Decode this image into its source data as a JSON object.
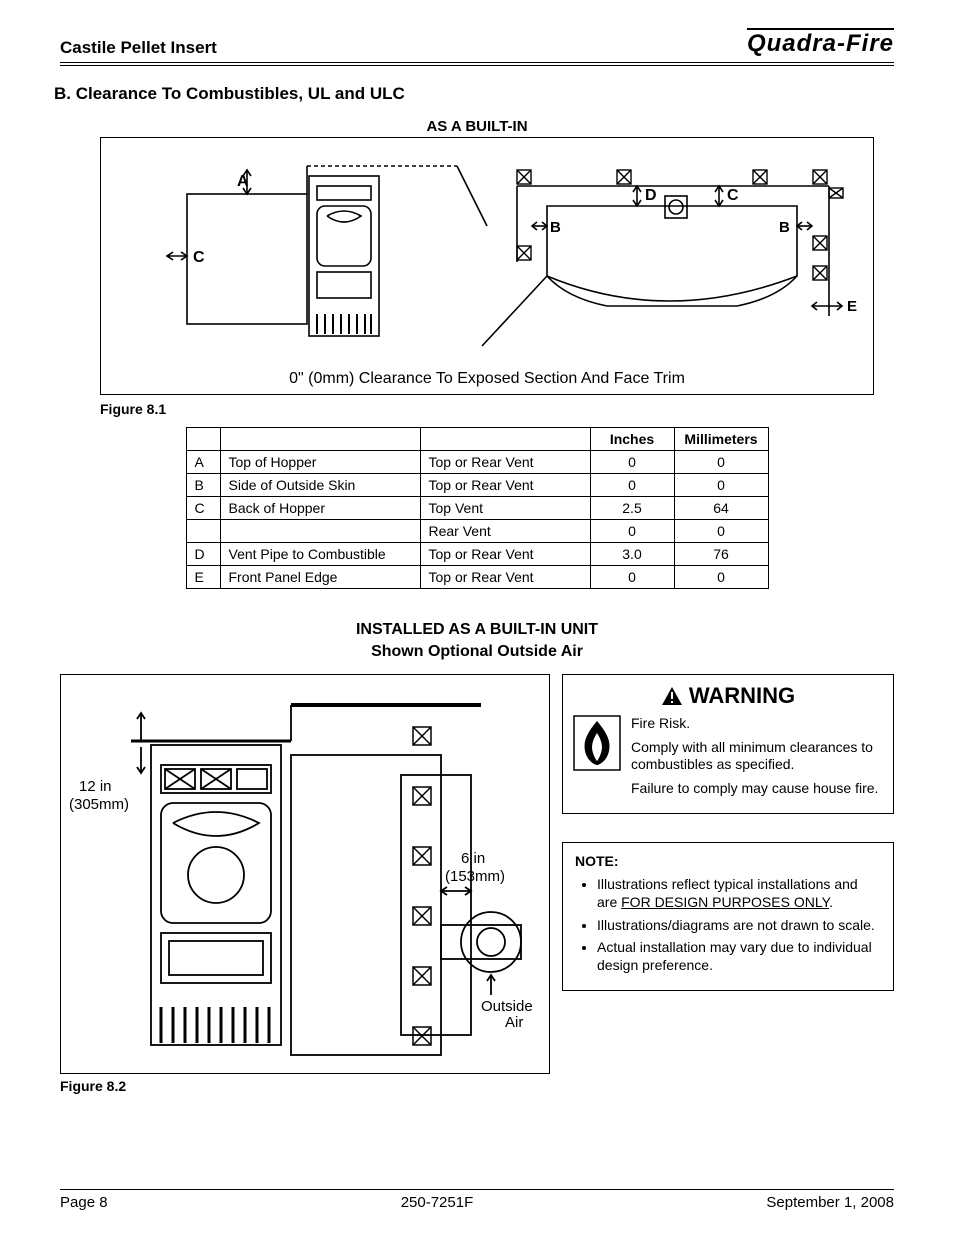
{
  "header": {
    "product": "Castile Pellet Insert",
    "brand": "Quadra-Fire"
  },
  "section_b": {
    "title": "B. Clearance To Combustibles, UL and ULC",
    "fig1_title": "AS A BUILT-IN",
    "fig1_note": "0\" (0mm) Clearance To Exposed Section And Face Trim",
    "fig1_caption": "Figure 8.1",
    "diagram_labels": {
      "A": "A",
      "B": "B",
      "C": "C",
      "D": "D",
      "E": "E"
    }
  },
  "table": {
    "headers": [
      "",
      "",
      "",
      "Inches",
      "Millimeters"
    ],
    "rows": [
      [
        "A",
        "Top of Hopper",
        "Top or Rear Vent",
        "0",
        "0"
      ],
      [
        "B",
        "Side of Outside Skin",
        "Top or Rear Vent",
        "0",
        "0"
      ],
      [
        "C",
        "Back of Hopper",
        "Top Vent",
        "2.5",
        "64"
      ],
      [
        "",
        "",
        "Rear Vent",
        "0",
        "0"
      ],
      [
        "D",
        "Vent Pipe to Combustible",
        "Top or Rear Vent",
        "3.0",
        "76"
      ],
      [
        "E",
        "Front Panel Edge",
        "Top or Rear Vent",
        "0",
        "0"
      ]
    ],
    "col_align": [
      "left",
      "left",
      "left",
      "center",
      "center"
    ],
    "border_color": "#000000",
    "font_size": 14
  },
  "built_in_unit": {
    "title_line1": "INSTALLED AS A BUILT-IN UNIT",
    "title_line2": "Shown Optional Outside Air",
    "labels": {
      "top": "12 in",
      "top_mm": "(305mm)",
      "side": "6 in",
      "side_mm": "(153mm)",
      "outside": "Outside",
      "air": "Air"
    },
    "fig2_caption": "Figure 8.2"
  },
  "warning": {
    "heading": "WARNING",
    "lines": [
      "Fire Risk.",
      "Comply with all minimum clearances to combustibles as specified.",
      "Failure to comply may cause house fire."
    ]
  },
  "note": {
    "title": "NOTE:",
    "items": [
      {
        "pre": "Illustrations reflect typical installations and are ",
        "u": "FOR DESIGN PURPOSES ONLY",
        "post": "."
      },
      {
        "pre": "Illustrations/diagrams are not drawn to scale.",
        "u": "",
        "post": ""
      },
      {
        "pre": "Actual installation may vary due to individual design preference.",
        "u": "",
        "post": ""
      }
    ]
  },
  "footer": {
    "page": "Page  8",
    "doc": "250-7251F",
    "date": "September 1, 2008"
  },
  "colors": {
    "stroke": "#000000",
    "bg": "#ffffff",
    "hatch": "#000000"
  }
}
